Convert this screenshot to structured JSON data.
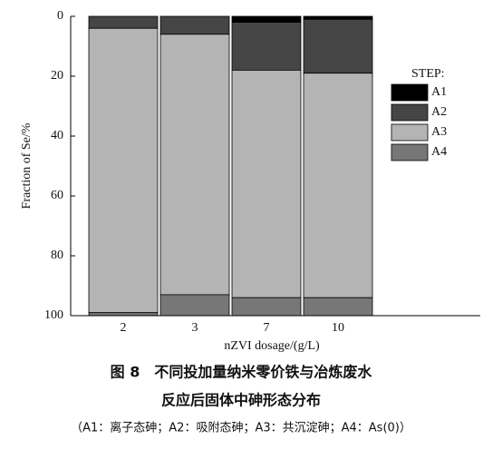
{
  "chart_data": {
    "type": "stacked_bar",
    "y_inverted": true,
    "y_label": "Fraction of Se/%",
    "x_label": "nZVI dosage/(g/L)",
    "categories": [
      "2",
      "3",
      "7",
      "10"
    ],
    "legend_title": "STEP:",
    "series": [
      {
        "name": "A1",
        "color": "#000000",
        "values": [
          0,
          0,
          2,
          1
        ]
      },
      {
        "name": "A2",
        "color": "#454545",
        "values": [
          4,
          6,
          16,
          18
        ]
      },
      {
        "name": "A3",
        "color": "#b4b4b4",
        "values": [
          95,
          87,
          76,
          75
        ]
      },
      {
        "name": "A4",
        "color": "#777777",
        "values": [
          1,
          7,
          6,
          6
        ]
      }
    ],
    "ylim": [
      0,
      100
    ],
    "yticks": [
      0,
      20,
      40,
      60,
      80,
      100
    ]
  },
  "caption": [
    "图 8　不同投加量纳米零价铁与冶炼废水",
    "反应后固体中砷形态分布",
    "（A1：离子态砷；A2：吸附态砷；A3：共沉淀砷；A4：As(0)）"
  ]
}
